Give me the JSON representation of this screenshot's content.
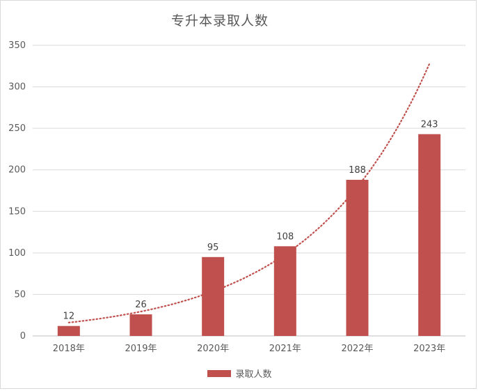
{
  "chart_data": {
    "type": "bar",
    "title": "专升本录取人数",
    "categories": [
      "2018年",
      "2019年",
      "2020年",
      "2021年",
      "2022年",
      "2023年"
    ],
    "series": [
      {
        "name": "录取人数",
        "values": [
          12,
          26,
          95,
          108,
          188,
          243
        ],
        "color": "#c0504d"
      }
    ],
    "trendline": {
      "type": "exponential",
      "style": "dotted",
      "color": "#c0504d"
    },
    "ylim": [
      0,
      350
    ],
    "yticks": [
      0,
      50,
      100,
      150,
      200,
      250,
      300,
      350
    ],
    "grid": true,
    "data_labels": true,
    "legend_position": "bottom"
  }
}
